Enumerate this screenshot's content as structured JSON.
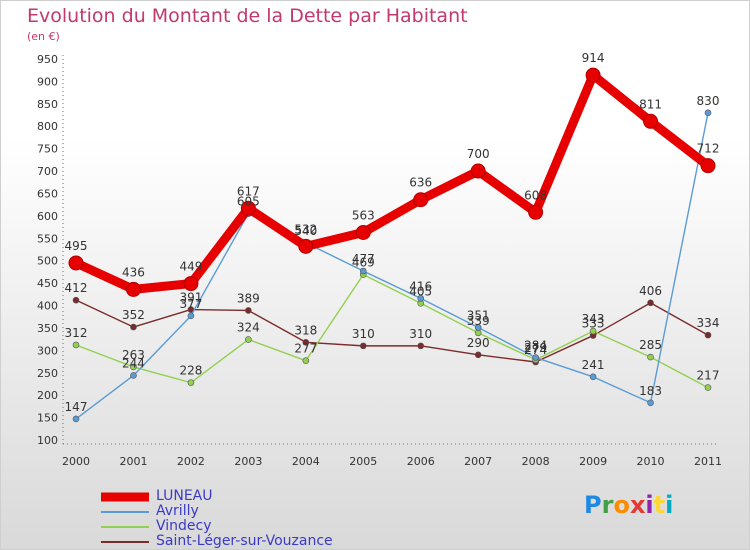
{
  "chart_data": {
    "type": "line",
    "title": "Evolution du Montant de la Dette par Habitant",
    "subtitle": "(en €)",
    "xlabel": "",
    "ylabel": "",
    "categories": [
      "2000",
      "2001",
      "2002",
      "2003",
      "2004",
      "2005",
      "2006",
      "2007",
      "2008",
      "2009",
      "2010",
      "2011"
    ],
    "ylim": [
      100,
      950
    ],
    "yticks": [
      100,
      150,
      200,
      250,
      300,
      350,
      400,
      450,
      500,
      550,
      600,
      650,
      700,
      750,
      800,
      850,
      900,
      950
    ],
    "grid": false,
    "legend_position": "bottom-left",
    "series": [
      {
        "name": "LUNEAU",
        "color": "#e60000",
        "emphasis": true,
        "values": [
          495,
          436,
          449,
          617,
          532,
          563,
          636,
          700,
          608,
          914,
          811,
          712
        ]
      },
      {
        "name": "Avrilly",
        "color": "#5b9bd5",
        "values": [
          147,
          244,
          377,
          605,
          540,
          477,
          416,
          351,
          284,
          241,
          183,
          830
        ]
      },
      {
        "name": "Vindecy",
        "color": "#92d050",
        "values": [
          312,
          263,
          228,
          324,
          277,
          469,
          405,
          339,
          279,
          343,
          285,
          217
        ]
      },
      {
        "name": "Saint-Léger-sur-Vouzance",
        "color": "#7b2b2b",
        "values": [
          412,
          352,
          391,
          389,
          318,
          310,
          310,
          290,
          274,
          333,
          406,
          334
        ]
      }
    ]
  },
  "logo": {
    "letters": [
      "P",
      "r",
      "o",
      "x",
      "i",
      "t",
      "i"
    ],
    "colors": [
      "#1e88e5",
      "#43a047",
      "#fb8c00",
      "#e53935",
      "#8e24aa",
      "#fdd835",
      "#00acc1"
    ]
  }
}
